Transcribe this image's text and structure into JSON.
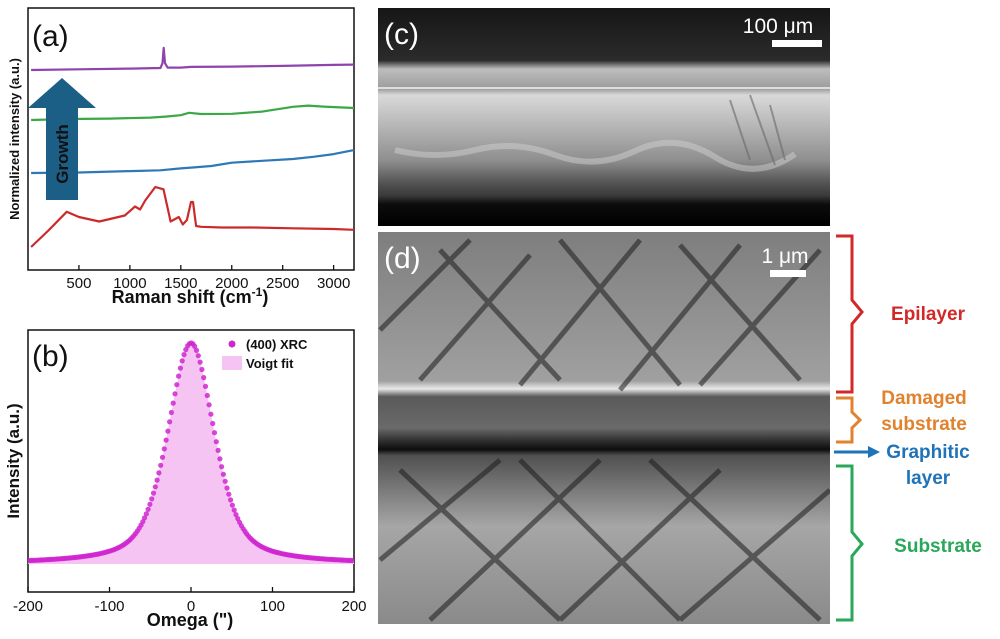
{
  "colors": {
    "purple": "#8e44ad",
    "green": "#3aa845",
    "blue": "#2e78b8",
    "red": "#cc2a2a",
    "magenta": "#d026d0",
    "fill_pink": "#f6c4f3",
    "arrow": "#1c5f86",
    "epilayer": "#d32828",
    "damaged": "#e0822e",
    "graphitic": "#1f73b8",
    "substrate": "#2aa75a"
  },
  "chart_data": [
    {
      "type": "line",
      "panel_label": "(a)",
      "xlabel": "Raman shift (cm",
      "xlabel_sup": "-1",
      "xlabel_end": ")",
      "ylabel": "Normalized intensity (a.u.)",
      "xlim": [
        0,
        3200
      ],
      "xticks": [
        "500",
        "1000",
        "1500",
        "2000",
        "2500",
        "3000"
      ],
      "xtick_values": [
        500,
        1000,
        1500,
        2000,
        2500,
        3000
      ],
      "annotation": "Growth",
      "series": [
        {
          "color_key": "purple",
          "x": [
            30,
            500,
            1000,
            1300,
            1320,
            1332,
            1345,
            1370,
            1500,
            1600,
            2000,
            2500,
            3000,
            3200
          ],
          "y": [
            0.0,
            0.2,
            0.4,
            0.6,
            2.0,
            6.5,
            2.0,
            0.7,
            0.7,
            0.9,
            1.0,
            1.2,
            1.5,
            1.6
          ]
        },
        {
          "color_key": "green",
          "x": [
            30,
            400,
            800,
            1200,
            1350,
            1500,
            1580,
            1700,
            2000,
            2300,
            2600,
            2750,
            2900,
            3200
          ],
          "y": [
            0.0,
            0.4,
            0.6,
            1.0,
            1.4,
            2.0,
            3.0,
            2.5,
            2.6,
            3.5,
            5.5,
            6.0,
            5.6,
            5.0
          ]
        },
        {
          "color_key": "blue",
          "x": [
            30,
            500,
            1000,
            1300,
            1500,
            1600,
            1800,
            2000,
            2300,
            2600,
            2800,
            3000,
            3200
          ],
          "y": [
            0.0,
            0.2,
            0.7,
            1.0,
            1.7,
            2.0,
            2.6,
            3.8,
            4.5,
            5.2,
            6.0,
            7.0,
            8.5
          ]
        },
        {
          "color_key": "red",
          "x": [
            30,
            200,
            380,
            500,
            700,
            950,
            1050,
            1100,
            1150,
            1250,
            1330,
            1400,
            1480,
            1520,
            1560,
            1600,
            1620,
            1650,
            1700,
            1900,
            2200,
            2600,
            3000,
            3200
          ],
          "y": [
            -1.2,
            1.0,
            3.5,
            2.8,
            2.2,
            3.0,
            4.2,
            3.8,
            5.0,
            6.8,
            6.5,
            2.2,
            2.8,
            1.8,
            2.4,
            4.8,
            4.8,
            1.6,
            1.5,
            1.4,
            1.4,
            1.3,
            1.2,
            1.1
          ]
        }
      ]
    },
    {
      "type": "scatter",
      "panel_label": "(b)",
      "xlabel": "Omega (\")",
      "ylabel": "Intensity (a.u.)",
      "xlim": [
        -200,
        200
      ],
      "xticks": [
        "-200",
        "-100",
        "0",
        "100",
        "200"
      ],
      "xtick_values": [
        -200,
        -100,
        0,
        100,
        200
      ],
      "ylim": [
        0,
        1.05
      ],
      "legend": [
        "(400) XRC",
        "Voigt fit"
      ],
      "legend_position": "top-right",
      "voigt": {
        "center": 0,
        "amplitude": 1.0,
        "fwhm": 68,
        "baseline": 0.0
      }
    }
  ],
  "panels": {
    "c": {
      "label": "(c)",
      "scalebar": "100 μm"
    },
    "d": {
      "label": "(d)",
      "scalebar": "1 μm"
    }
  },
  "annotations": {
    "epilayer": "Epilayer",
    "damaged_1": "Damaged",
    "damaged_2": "substrate",
    "graphitic_1": "Graphitic",
    "graphitic_2": "layer",
    "substrate": "Substrate"
  }
}
